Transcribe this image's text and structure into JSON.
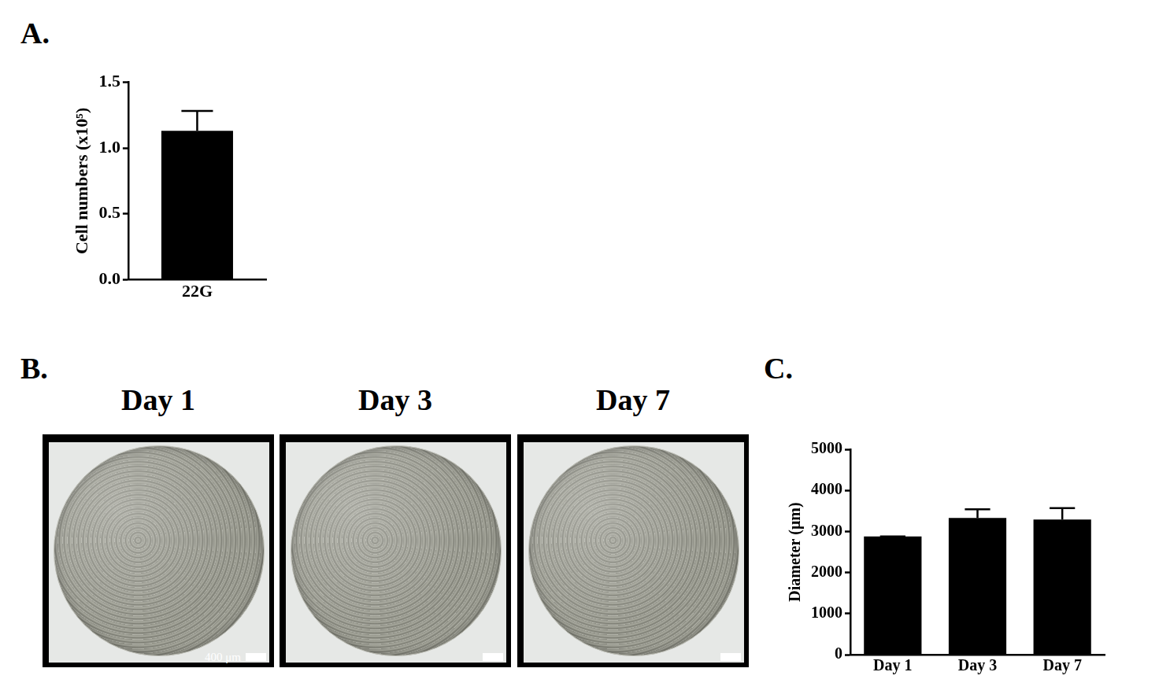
{
  "chart_data": [
    {
      "type": "bar",
      "panel": "A.",
      "categories": [
        "22G"
      ],
      "values": [
        1.13
      ],
      "errors": [
        0.15
      ],
      "color": "#000000",
      "y_label": "Cell numbers (x10⁵)",
      "ylim": [
        0,
        1.5
      ],
      "yticks": [
        {
          "value": 0,
          "label": "0.0"
        },
        {
          "value": 0.5,
          "label": "0.5"
        },
        {
          "value": 1,
          "label": "1.0"
        },
        {
          "value": 1.5,
          "label": "1.5"
        }
      ],
      "grid": false
    },
    {
      "type": "bar",
      "panel": "C.",
      "categories": [
        "Day 1",
        "Day 3",
        "Day 7"
      ],
      "values": [
        2880,
        3330,
        3290
      ],
      "errors": [
        0,
        210,
        280
      ],
      "color": "#000000",
      "y_label": "Diameter (μm)",
      "ylim": [
        0,
        5000
      ],
      "yticks": [
        0,
        1000,
        2000,
        3000,
        4000,
        5000
      ],
      "grid": false
    }
  ],
  "images": {
    "panel": "B.",
    "titles": [
      "Day 1",
      "Day 3",
      "Day 7"
    ],
    "scale_bar": "400 μm"
  }
}
